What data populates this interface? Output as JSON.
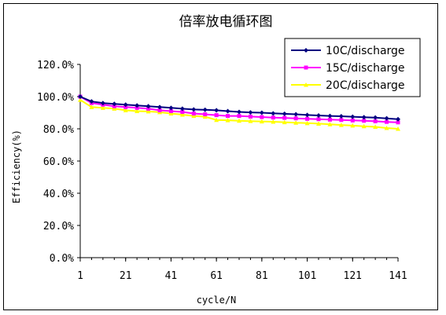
{
  "chart_data": {
    "type": "line",
    "title": "倍率放电循环图",
    "xlabel": "cycle/N",
    "ylabel": "Efficiency(%)",
    "xlim": [
      1,
      141
    ],
    "ylim": [
      0,
      120
    ],
    "x_ticks": [
      1,
      21,
      41,
      61,
      81,
      101,
      121,
      141
    ],
    "x_tick_labels": [
      "1",
      "21",
      "41",
      "61",
      "81",
      "101",
      "121",
      "141"
    ],
    "y_ticks": [
      0,
      20,
      40,
      60,
      80,
      100,
      120
    ],
    "y_tick_labels": [
      "0.0%",
      "20.0%",
      "40.0%",
      "60.0%",
      "80.0%",
      "100.0%",
      "120.0%"
    ],
    "grid": false,
    "legend_position": "top-right",
    "x": [
      1,
      6,
      11,
      16,
      21,
      26,
      31,
      36,
      41,
      46,
      51,
      56,
      61,
      66,
      71,
      76,
      81,
      86,
      91,
      96,
      101,
      106,
      111,
      116,
      121,
      126,
      131,
      136,
      141
    ],
    "series": [
      {
        "name": "10C/discharge",
        "color": "#000080",
        "marker": "diamond",
        "values": [
          100,
          97,
          96,
          95.5,
          95,
          94.5,
          94,
          93.5,
          93,
          92.5,
          92,
          91.8,
          91.5,
          91,
          90.5,
          90.2,
          90,
          89.6,
          89.3,
          89,
          88.6,
          88.3,
          88,
          87.8,
          87.5,
          87.2,
          87,
          86.5,
          86
        ]
      },
      {
        "name": "15C/discharge",
        "color": "#ff00ff",
        "marker": "square",
        "values": [
          100,
          96,
          95,
          94,
          93.5,
          93,
          92.5,
          91.5,
          91,
          90.5,
          89.5,
          89,
          88.5,
          88,
          88,
          87.6,
          87.3,
          87,
          86.8,
          86.5,
          86.2,
          86,
          85.7,
          85.5,
          85.2,
          85,
          84.7,
          84.3,
          84
        ]
      },
      {
        "name": "20C/discharge",
        "color": "#ffff00",
        "marker": "triangle",
        "values": [
          98,
          93.5,
          93,
          92.5,
          91.5,
          91,
          90.8,
          90.3,
          89.5,
          88.8,
          88,
          87.5,
          85.5,
          85.3,
          85,
          84.8,
          84.6,
          84.4,
          84.1,
          83.8,
          83.5,
          83.2,
          82.8,
          82.4,
          82,
          81.6,
          81.2,
          80.5,
          80
        ]
      }
    ]
  }
}
